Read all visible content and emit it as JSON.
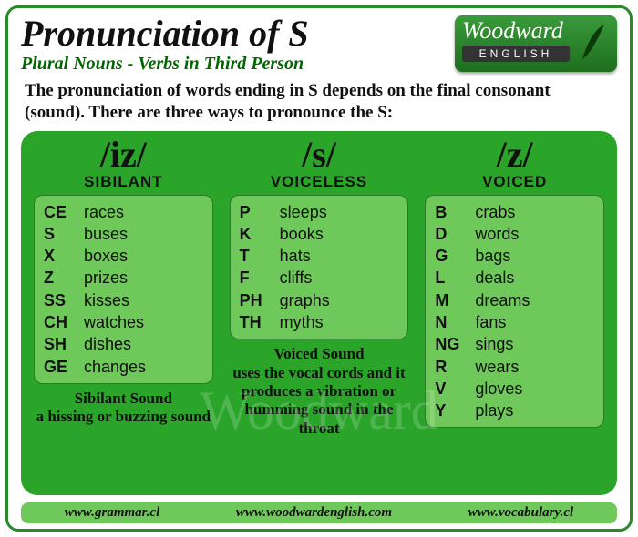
{
  "title": "Pronunciation of S",
  "subtitle": "Plural Nouns - Verbs in Third Person",
  "logo": {
    "brand": "Woodward",
    "sub": "ENGLISH"
  },
  "intro": "The pronunciation of words ending in S depends on the final consonant (sound). There are three ways to pronounce the S:",
  "columns": [
    {
      "ipa": "/iz/",
      "category": "SIBILANT",
      "rows": [
        {
          "ending": "CE",
          "example": "races"
        },
        {
          "ending": "S",
          "example": "buses"
        },
        {
          "ending": "X",
          "example": "boxes"
        },
        {
          "ending": "Z",
          "example": "prizes"
        },
        {
          "ending": "SS",
          "example": "kisses"
        },
        {
          "ending": "CH",
          "example": "watches"
        },
        {
          "ending": "SH",
          "example": "dishes"
        },
        {
          "ending": "GE",
          "example": "changes"
        }
      ],
      "desc_lead": "Sibilant Sound",
      "desc_body": "a hissing or buzzing sound"
    },
    {
      "ipa": "/s/",
      "category": "VOICELESS",
      "rows": [
        {
          "ending": "P",
          "example": "sleeps"
        },
        {
          "ending": "K",
          "example": "books"
        },
        {
          "ending": "T",
          "example": "hats"
        },
        {
          "ending": "F",
          "example": "cliffs"
        },
        {
          "ending": "PH",
          "example": "graphs"
        },
        {
          "ending": "TH",
          "example": "myths"
        }
      ],
      "desc_lead": "Voiced Sound",
      "desc_body": "uses the vocal cords and it produces a vibration or humming sound in the throat"
    },
    {
      "ipa": "/z/",
      "category": "VOICED",
      "rows": [
        {
          "ending": "B",
          "example": "crabs"
        },
        {
          "ending": "D",
          "example": "words"
        },
        {
          "ending": "G",
          "example": "bags"
        },
        {
          "ending": "L",
          "example": "deals"
        },
        {
          "ending": "M",
          "example": "dreams"
        },
        {
          "ending": "N",
          "example": "fans"
        },
        {
          "ending": "NG",
          "example": "sings"
        },
        {
          "ending": "R",
          "example": "wears"
        },
        {
          "ending": "V",
          "example": "gloves"
        },
        {
          "ending": "Y",
          "example": "plays"
        }
      ],
      "desc_lead": "",
      "desc_body": ""
    }
  ],
  "footer": [
    "www.grammar.cl",
    "www.woodwardenglish.com",
    "www.vocabulary.cl"
  ],
  "watermark": "Woodward",
  "colors": {
    "frame_border": "#2a8a2a",
    "green_panel": "#2aa52a",
    "light_panel": "#6fc95a",
    "title_green": "#006600"
  }
}
